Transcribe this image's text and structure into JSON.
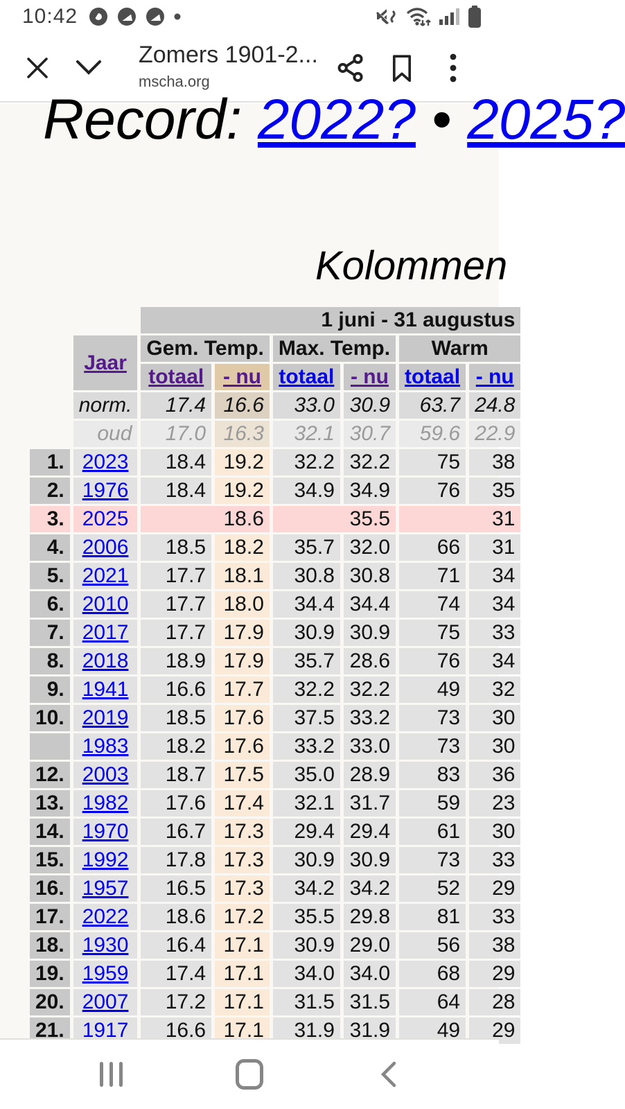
{
  "status_bar": {
    "time": "10:42"
  },
  "browser": {
    "title": "Zomers 1901-2...",
    "domain": "mscha.org"
  },
  "icons": [
    "browser-app-icon",
    "notification-icon",
    "notification-icon",
    "notification-dot",
    "mute-vibrate-icon",
    "wifi-icon",
    "signal-icon",
    "battery-icon",
    "close-icon",
    "chevron-down-icon",
    "share-icon",
    "bookmark-icon",
    "overflow-menu-icon",
    "recents-icon",
    "home-icon",
    "back-icon"
  ],
  "content": {
    "h1_prefix": "Record: ",
    "h1_link1": "2022?",
    "h1_bullet": " • ",
    "h1_link2": "2025?",
    "h2": "Kolommen"
  },
  "table": {
    "period": "1 juni - 31 augustus",
    "jaar_label": "Jaar",
    "groups": [
      "Gem. Temp.",
      "Max. Temp.",
      "Warm"
    ],
    "sub": [
      "totaal",
      "- nu"
    ],
    "norm": {
      "label": "norm.",
      "values": [
        "17.4",
        "16.6",
        "33.0",
        "30.9",
        "63.7",
        "24.8"
      ]
    },
    "oud": {
      "label": "oud",
      "values": [
        "17.0",
        "16.3",
        "32.1",
        "30.7",
        "59.6",
        "22.9"
      ]
    },
    "rows": [
      {
        "rank": "1.",
        "year": "2023",
        "v": [
          "18.4",
          "19.2",
          "32.2",
          "32.2",
          "75",
          "38"
        ]
      },
      {
        "rank": "2.",
        "year": "1976",
        "v": [
          "18.4",
          "19.2",
          "34.9",
          "34.9",
          "76",
          "35"
        ]
      },
      {
        "rank": "3.",
        "year": "2025",
        "v": [
          "",
          "18.6",
          "",
          "35.5",
          "",
          "31"
        ],
        "pink": true
      },
      {
        "rank": "4.",
        "year": "2006",
        "v": [
          "18.5",
          "18.2",
          "35.7",
          "32.0",
          "66",
          "31"
        ]
      },
      {
        "rank": "5.",
        "year": "2021",
        "v": [
          "17.7",
          "18.1",
          "30.8",
          "30.8",
          "71",
          "34"
        ]
      },
      {
        "rank": "6.",
        "year": "2010",
        "v": [
          "17.7",
          "18.0",
          "34.4",
          "34.4",
          "74",
          "34"
        ]
      },
      {
        "rank": "7.",
        "year": "2017",
        "v": [
          "17.7",
          "17.9",
          "30.9",
          "30.9",
          "75",
          "33"
        ]
      },
      {
        "rank": "8.",
        "year": "2018",
        "v": [
          "18.9",
          "17.9",
          "35.7",
          "28.6",
          "76",
          "34"
        ]
      },
      {
        "rank": "9.",
        "year": "1941",
        "v": [
          "16.6",
          "17.7",
          "32.2",
          "32.2",
          "49",
          "32"
        ]
      },
      {
        "rank": "10.",
        "year": "2019",
        "v": [
          "18.5",
          "17.6",
          "37.5",
          "33.2",
          "73",
          "30"
        ]
      },
      {
        "rank": "",
        "year": "1983",
        "v": [
          "18.2",
          "17.6",
          "33.2",
          "33.0",
          "73",
          "30"
        ]
      },
      {
        "rank": "12.",
        "year": "2003",
        "v": [
          "18.7",
          "17.5",
          "35.0",
          "28.9",
          "83",
          "36"
        ]
      },
      {
        "rank": "13.",
        "year": "1982",
        "v": [
          "17.6",
          "17.4",
          "32.1",
          "31.7",
          "59",
          "23"
        ]
      },
      {
        "rank": "14.",
        "year": "1970",
        "v": [
          "16.7",
          "17.3",
          "29.4",
          "29.4",
          "61",
          "30"
        ]
      },
      {
        "rank": "15.",
        "year": "1992",
        "v": [
          "17.8",
          "17.3",
          "30.9",
          "30.9",
          "73",
          "33"
        ]
      },
      {
        "rank": "16.",
        "year": "1957",
        "v": [
          "16.5",
          "17.3",
          "34.2",
          "34.2",
          "52",
          "29"
        ]
      },
      {
        "rank": "17.",
        "year": "2022",
        "v": [
          "18.6",
          "17.2",
          "35.5",
          "29.8",
          "81",
          "33"
        ]
      },
      {
        "rank": "18.",
        "year": "1930",
        "v": [
          "16.4",
          "17.1",
          "30.9",
          "29.0",
          "56",
          "38"
        ]
      },
      {
        "rank": "19.",
        "year": "1959",
        "v": [
          "17.4",
          "17.1",
          "34.0",
          "34.0",
          "68",
          "29"
        ]
      },
      {
        "rank": "20.",
        "year": "2007",
        "v": [
          "17.2",
          "17.1",
          "31.5",
          "31.5",
          "64",
          "28"
        ]
      },
      {
        "rank": "21.",
        "year": "1917",
        "v": [
          "16.6",
          "17.1",
          "31.9",
          "31.9",
          "49",
          "29"
        ]
      }
    ]
  },
  "colors": {
    "link": "#0000ee",
    "visited": "#551a8b",
    "sorted_header": "#dfc9a6",
    "sorted_cell": "#fcead9",
    "highlight_row": "#fcd7d5",
    "header_gray": "#c8c8c8",
    "cell_gray": "#e2e2e2",
    "page_bg": "#faf8f4"
  }
}
